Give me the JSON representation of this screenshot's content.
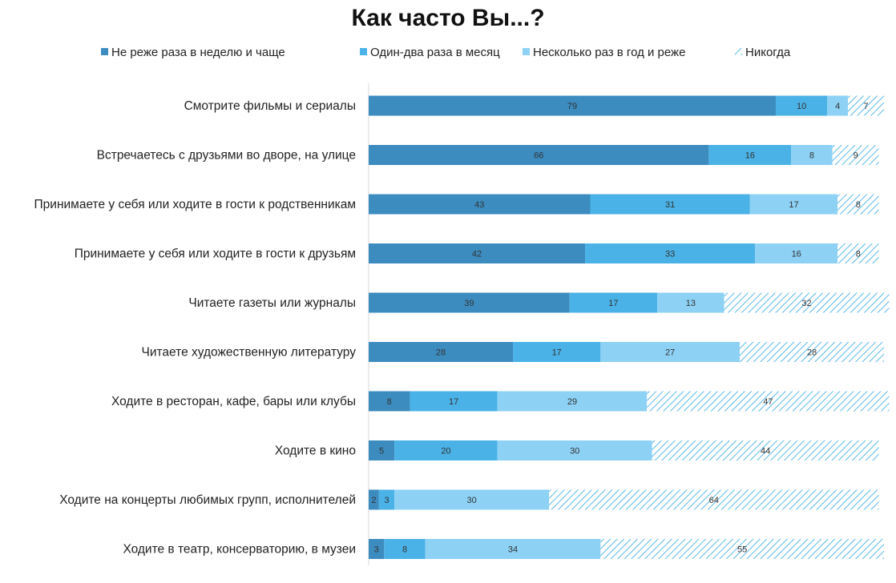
{
  "chart_data": {
    "type": "bar",
    "orientation": "horizontal",
    "stacked": true,
    "title": "Как часто Вы...?",
    "categories": [
      "Смотрите фильмы и сериалы",
      "Встречаетесь с друзьями во дворе, на улице",
      "Принимаете у себя или ходите в гости к родственникам",
      "Принимаете у себя или ходите в гости к друзьям",
      "Читаете газеты или журналы",
      "Читаете художественную литературу",
      "Ходите в ресторан, кафе, бары или клубы",
      "Ходите в кино",
      "Ходите на концерты любимых групп, исполнителей",
      "Ходите в театр, консерваторию, в музеи"
    ],
    "series": [
      {
        "name": "Не реже раза в неделю и чаще",
        "color": "#3c8cc0",
        "values": [
          79,
          66,
          43,
          42,
          39,
          28,
          8,
          5,
          2,
          3
        ]
      },
      {
        "name": "Один-два раза в месяц",
        "color": "#4ab2e6",
        "values": [
          10,
          16,
          31,
          33,
          17,
          17,
          17,
          20,
          3,
          8
        ]
      },
      {
        "name": "Несколько раз в год и реже",
        "color": "#8dd1f5",
        "values": [
          4,
          8,
          17,
          16,
          13,
          27,
          29,
          30,
          30,
          34
        ]
      },
      {
        "name": "Никогда",
        "color": "#5ab8e8",
        "pattern": "hatched",
        "values": [
          7,
          9,
          8,
          8,
          32,
          28,
          47,
          44,
          64,
          55
        ]
      }
    ],
    "legend_position": "top",
    "xlim": [
      0,
      100
    ],
    "grid": false
  }
}
